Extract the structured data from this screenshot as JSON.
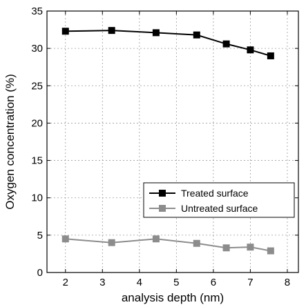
{
  "chart_data": {
    "type": "line",
    "xlabel": "analysis depth (nm)",
    "ylabel": "Oxygen concentration (%)",
    "xlim": [
      1.5,
      8.3
    ],
    "ylim": [
      0,
      35
    ],
    "xticks": [
      "2",
      "3",
      "4",
      "5",
      "6",
      "7",
      "8"
    ],
    "yticks": [
      "0",
      "5",
      "10",
      "15",
      "20",
      "25",
      "30",
      "35"
    ],
    "grid": true,
    "legend_position": "lower-right",
    "series": [
      {
        "name": "Treated surface",
        "color": "#000000",
        "marker": "square",
        "x": [
          2.0,
          3.25,
          4.45,
          5.55,
          6.35,
          7.0,
          7.55
        ],
        "y": [
          32.3,
          32.4,
          32.1,
          31.8,
          30.6,
          29.8,
          29.0
        ]
      },
      {
        "name": "Untreated surface",
        "color": "#8c8c8c",
        "marker": "square",
        "x": [
          2.0,
          3.25,
          4.45,
          5.55,
          6.35,
          7.0,
          7.55
        ],
        "y": [
          4.5,
          4.0,
          4.5,
          3.9,
          3.3,
          3.4,
          2.9
        ]
      }
    ]
  }
}
